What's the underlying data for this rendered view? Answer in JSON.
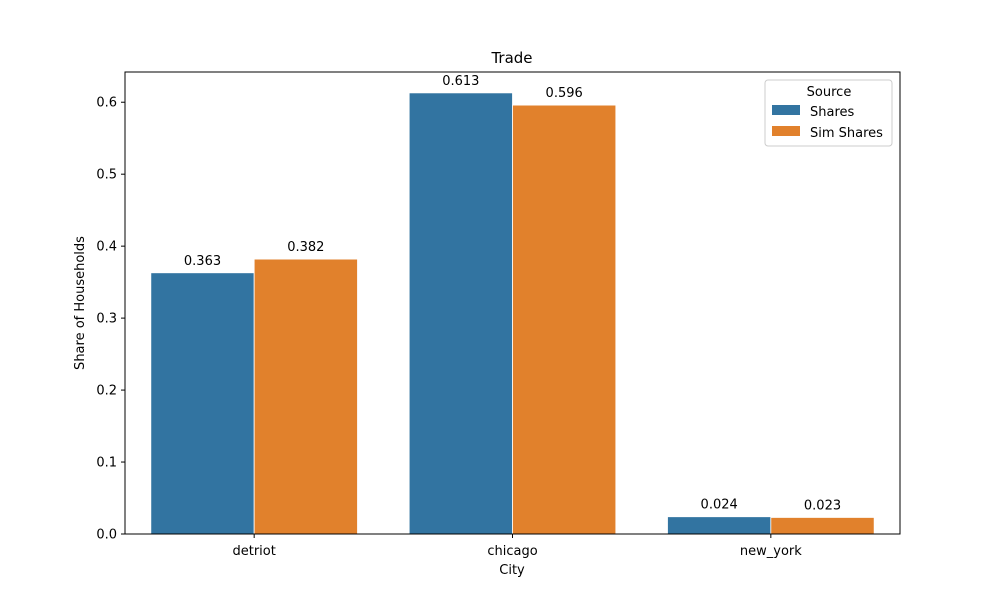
{
  "chart_data": {
    "type": "bar",
    "title": "Trade",
    "xlabel": "City",
    "ylabel": "Share of Households",
    "categories": [
      "detriot",
      "chicago",
      "new_york"
    ],
    "series": [
      {
        "name": "Shares",
        "values": [
          0.363,
          0.613,
          0.024
        ],
        "color": "#3274a1"
      },
      {
        "name": "Sim Shares",
        "values": [
          0.382,
          0.596,
          0.023
        ],
        "color": "#e1812c"
      }
    ],
    "data_labels": [
      [
        "0.363",
        "0.613",
        "0.024"
      ],
      [
        "0.382",
        "0.596",
        "0.023"
      ]
    ],
    "ylim": [
      0,
      0.642
    ],
    "yticks": [
      0.0,
      0.1,
      0.2,
      0.3,
      0.4,
      0.5,
      0.6
    ],
    "ytick_labels": [
      "0.0",
      "0.1",
      "0.2",
      "0.3",
      "0.4",
      "0.5",
      "0.6"
    ],
    "grid": false,
    "legend": {
      "title": "Source",
      "placement": "top-right",
      "entries": [
        "Shares",
        "Sim Shares"
      ]
    }
  }
}
